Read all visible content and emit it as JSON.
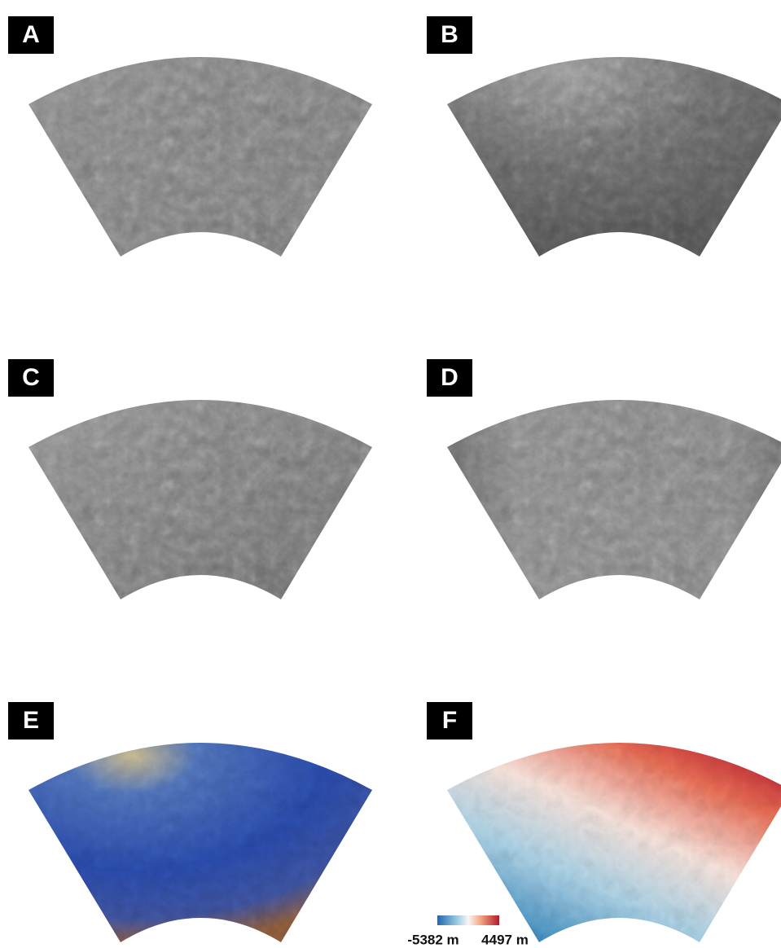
{
  "panels": [
    {
      "label": "A"
    },
    {
      "label": "B"
    },
    {
      "label": "C"
    },
    {
      "label": "D"
    },
    {
      "label": "E"
    },
    {
      "label": "F"
    }
  ],
  "colorbar": {
    "min_label": "-5382 m",
    "max_label": "4497 m"
  }
}
